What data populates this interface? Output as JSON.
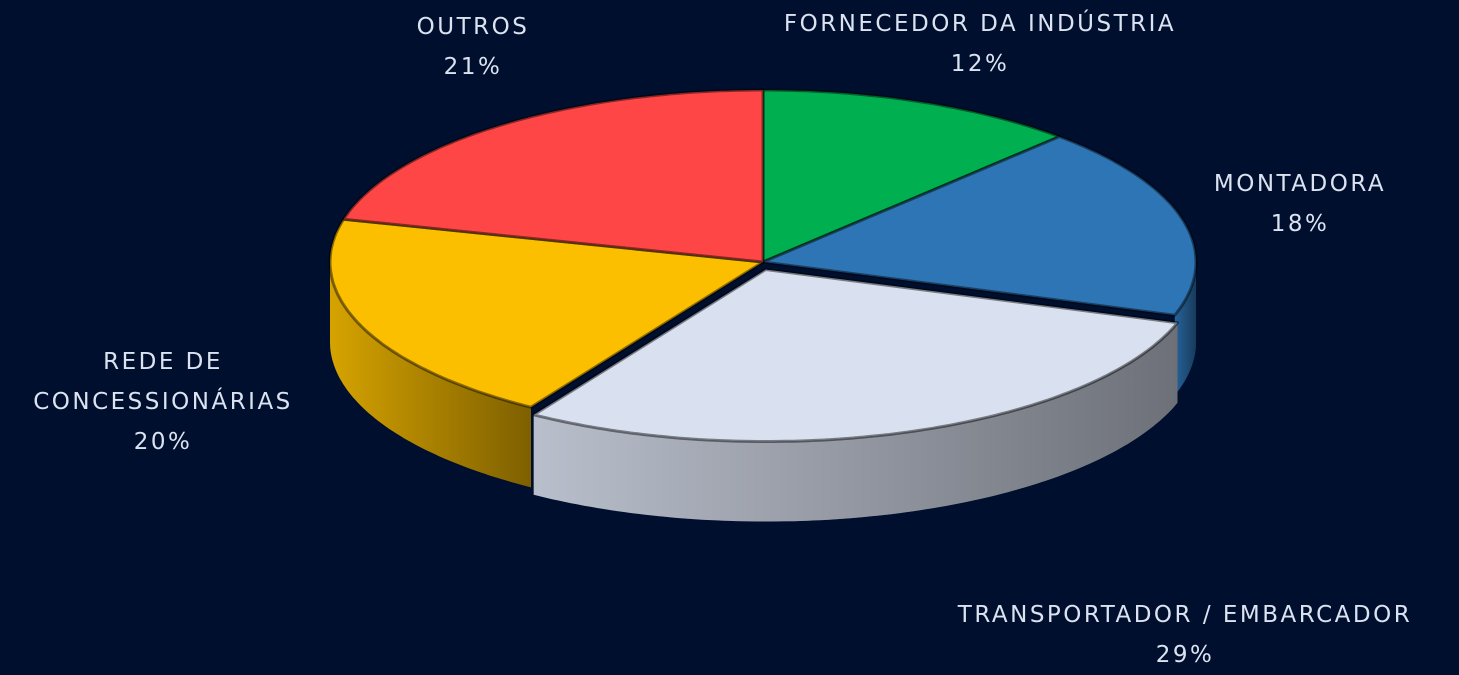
{
  "chart_data": {
    "type": "pie",
    "categories": [
      "FORNECEDOR DA INDÚSTRIA",
      "MONTADORA",
      "TRANSPORTADOR / EMBARCADOR",
      "REDE DE CONCESSIONÁRIAS",
      "OUTROS"
    ],
    "values": [
      12,
      18,
      29,
      20,
      21
    ],
    "value_labels": [
      "12%",
      "18%",
      "29%",
      "20%",
      "21%"
    ],
    "colors": [
      "#00b050",
      "#2e75b6",
      "#d9e0ef",
      "#fbbf00",
      "#ff4646"
    ]
  }
}
